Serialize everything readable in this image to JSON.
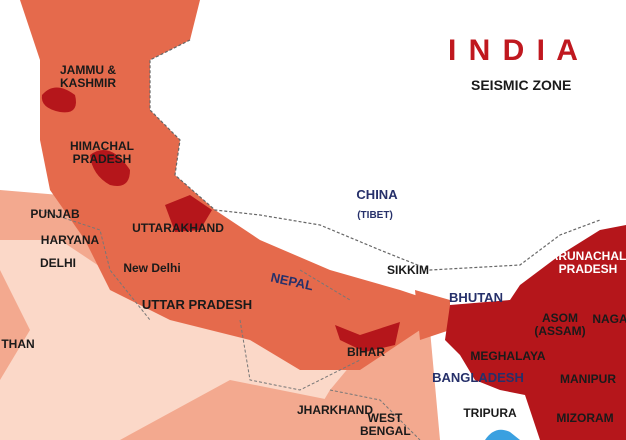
{
  "title": "I N D I A",
  "subtitle": "SEISMIC ZONE",
  "colors": {
    "zone_v": "#b5161b",
    "zone_iv": "#e56a4c",
    "zone_iii": "#f3a98f",
    "zone_ii": "#fbd8c8",
    "title": "#c0181f",
    "country_label": "#26306a"
  },
  "states": [
    "JAMMU & KASHMIR",
    "HIMACHAL PRADESH",
    "PUNJAB",
    "HARYANA",
    "DELHI",
    "New Delhi",
    "UTTARAKHAND",
    "UTTAR PRADESH",
    "THAN",
    "BIHAR",
    "JHARKHAND",
    "WEST BENGAL",
    "SIKKIM",
    "ARUNACHAL PRADESH",
    "ASOM (ASSAM)",
    "NAGA",
    "MEGHALAYA",
    "MANIPUR",
    "TRIPURA",
    "MIZORAM"
  ],
  "countries": [
    "CHINA",
    "(TIBET)",
    "NEPAL",
    "BHUTAN",
    "BANGLADESH"
  ]
}
